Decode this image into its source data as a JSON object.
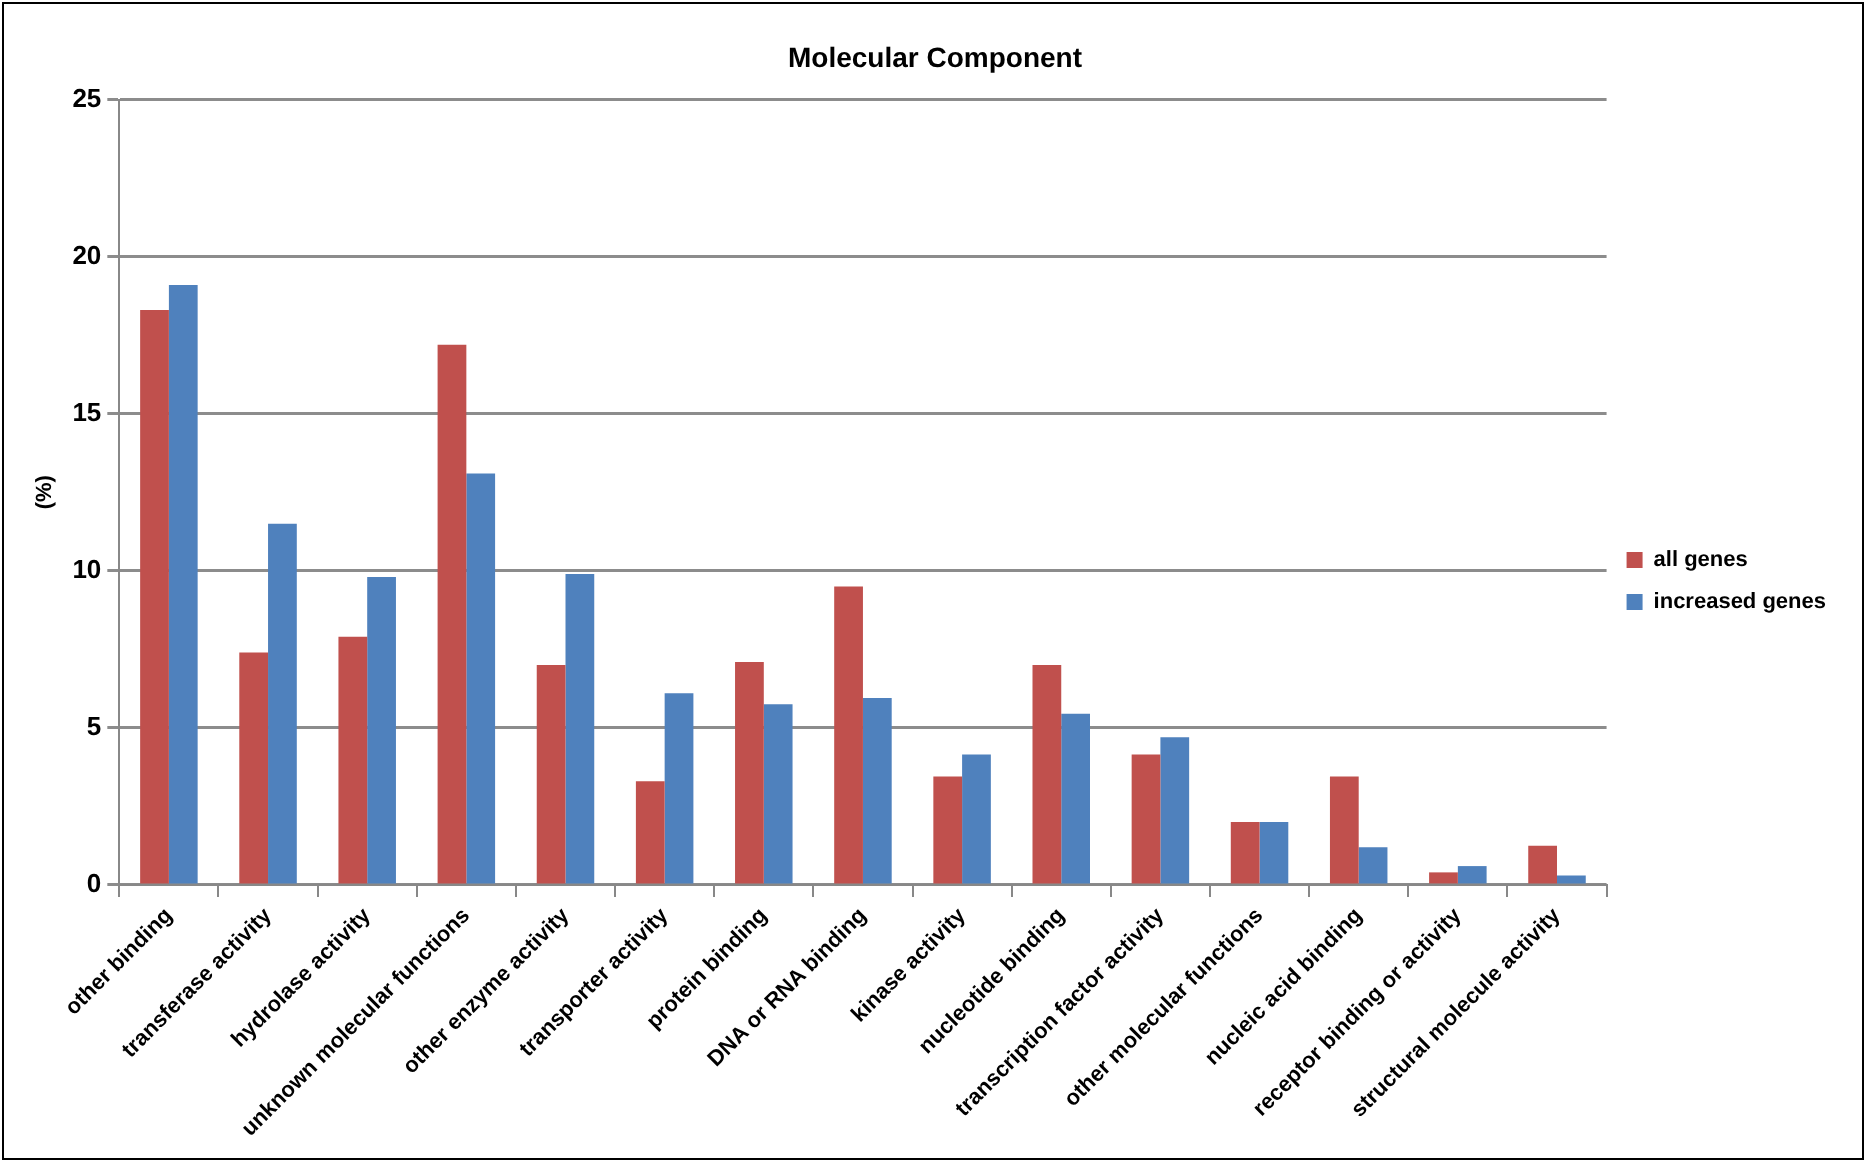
{
  "chart_data": {
    "type": "bar",
    "title": "Molecular Component",
    "ylabel": "(%)",
    "categories": [
      "other binding",
      "transferase activity",
      "hydrolase activity",
      "unknown molecular functions",
      "other enzyme activity",
      "transporter activity",
      "protein binding",
      "DNA or RNA binding",
      "kinase activity",
      "nucleotide binding",
      "transcription factor activity",
      "other molecular functions",
      "nucleic acid binding",
      "receptor binding or activity",
      "structural molecule activity"
    ],
    "series": [
      {
        "name": "all genes",
        "color": "#c0504d",
        "values": [
          18.3,
          7.4,
          7.9,
          17.2,
          7.0,
          3.3,
          7.1,
          9.5,
          3.45,
          7.0,
          4.15,
          2.0,
          3.45,
          0.4,
          1.25
        ]
      },
      {
        "name": "increased genes",
        "color": "#4f81bd",
        "values": [
          19.1,
          11.5,
          9.8,
          13.1,
          9.9,
          6.1,
          5.75,
          5.95,
          4.15,
          5.45,
          4.7,
          2.0,
          1.2,
          0.6,
          0.3
        ]
      }
    ],
    "ylim": [
      0,
      25
    ],
    "yticks": [
      0,
      5,
      10,
      15,
      20,
      25
    ],
    "grid": "y",
    "legend": "right"
  }
}
